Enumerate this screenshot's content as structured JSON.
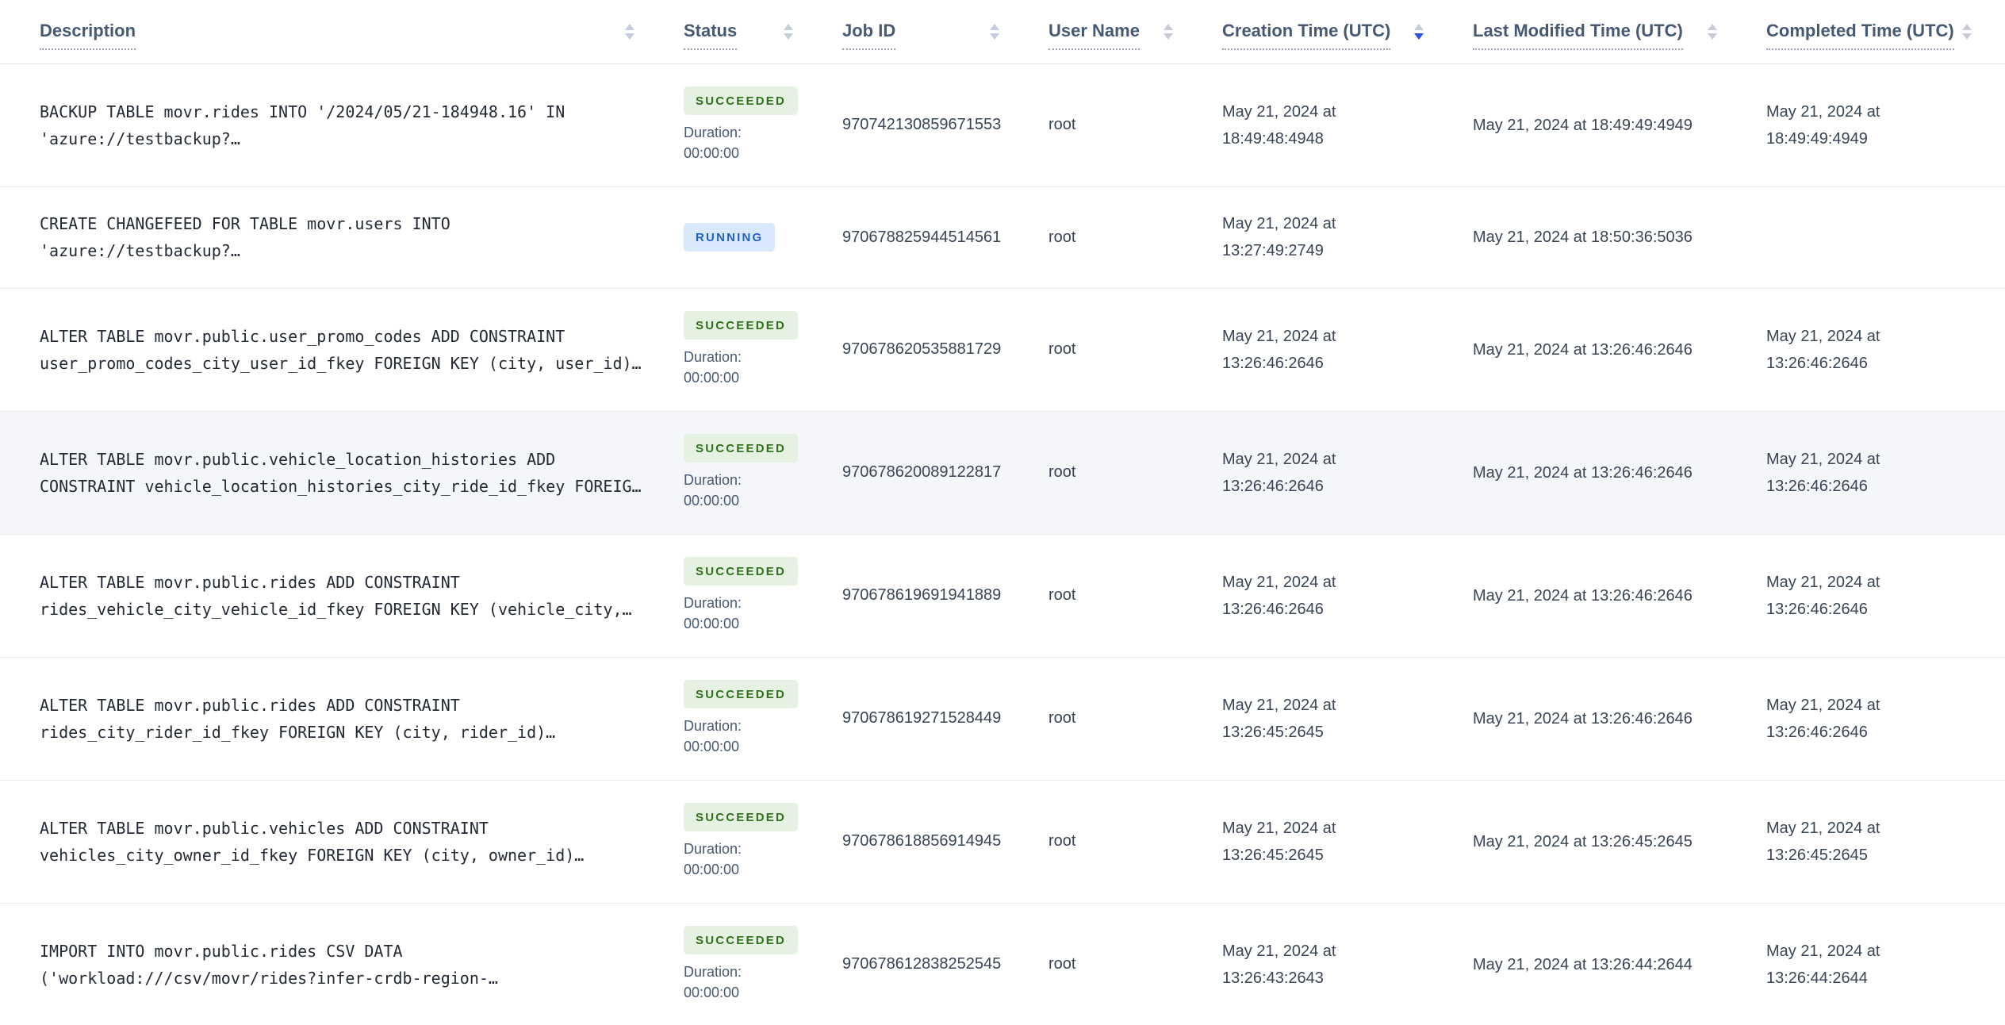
{
  "table": {
    "columns": [
      {
        "key": "description",
        "label": "Description",
        "sortable": true,
        "sort": null
      },
      {
        "key": "status",
        "label": "Status",
        "sortable": true,
        "sort": null
      },
      {
        "key": "job-id",
        "label": "Job ID",
        "sortable": true,
        "sort": null
      },
      {
        "key": "user-name",
        "label": "User Name",
        "sortable": true,
        "sort": null
      },
      {
        "key": "creation-time",
        "label": "Creation Time (UTC)",
        "sortable": true,
        "sort": "desc"
      },
      {
        "key": "last-modified-time",
        "label": "Last Modified Time (UTC)",
        "sortable": true,
        "sort": null
      },
      {
        "key": "completed-time",
        "label": "Completed Time (UTC)",
        "sortable": true,
        "sort": null
      }
    ],
    "rows": [
      {
        "description": "BACKUP TABLE movr.rides INTO '/2024/05/21-184948.16' IN 'azure://testbackup?…",
        "status": "SUCCEEDED",
        "duration_label": "Duration:",
        "duration": "00:00:00",
        "job_id": "970742130859671553",
        "user_name": "root",
        "creation_time": "May 21, 2024 at 18:49:48:4948",
        "last_modified_time": "May 21, 2024 at 18:49:49:4949",
        "completed_time": "May 21, 2024 at 18:49:49:4949",
        "highlighted": false
      },
      {
        "description": "CREATE CHANGEFEED FOR TABLE movr.users INTO 'azure://testbackup?…",
        "status": "RUNNING",
        "job_id": "970678825944514561",
        "user_name": "root",
        "creation_time": "May 21, 2024 at 13:27:49:2749",
        "last_modified_time": "May 21, 2024 at 18:50:36:5036",
        "completed_time": "",
        "highlighted": false
      },
      {
        "description": "ALTER TABLE movr.public.user_promo_codes ADD CONSTRAINT user_promo_codes_city_user_id_fkey FOREIGN KEY (city, user_id)…",
        "status": "SUCCEEDED",
        "duration_label": "Duration:",
        "duration": "00:00:00",
        "job_id": "970678620535881729",
        "user_name": "root",
        "creation_time": "May 21, 2024 at 13:26:46:2646",
        "last_modified_time": "May 21, 2024 at 13:26:46:2646",
        "completed_time": "May 21, 2024 at 13:26:46:2646",
        "highlighted": false
      },
      {
        "description": "ALTER TABLE movr.public.vehicle_location_histories ADD CONSTRAINT vehicle_location_histories_city_ride_id_fkey FOREIG…",
        "status": "SUCCEEDED",
        "duration_label": "Duration:",
        "duration": "00:00:00",
        "job_id": "970678620089122817",
        "user_name": "root",
        "creation_time": "May 21, 2024 at 13:26:46:2646",
        "last_modified_time": "May 21, 2024 at 13:26:46:2646",
        "completed_time": "May 21, 2024 at 13:26:46:2646",
        "highlighted": true
      },
      {
        "description": "ALTER TABLE movr.public.rides ADD CONSTRAINT rides_vehicle_city_vehicle_id_fkey FOREIGN KEY (vehicle_city,…",
        "status": "SUCCEEDED",
        "duration_label": "Duration:",
        "duration": "00:00:00",
        "job_id": "970678619691941889",
        "user_name": "root",
        "creation_time": "May 21, 2024 at 13:26:46:2646",
        "last_modified_time": "May 21, 2024 at 13:26:46:2646",
        "completed_time": "May 21, 2024 at 13:26:46:2646",
        "highlighted": false
      },
      {
        "description": "ALTER TABLE movr.public.rides ADD CONSTRAINT rides_city_rider_id_fkey FOREIGN KEY (city, rider_id)…",
        "status": "SUCCEEDED",
        "duration_label": "Duration:",
        "duration": "00:00:00",
        "job_id": "970678619271528449",
        "user_name": "root",
        "creation_time": "May 21, 2024 at 13:26:45:2645",
        "last_modified_time": "May 21, 2024 at 13:26:46:2646",
        "completed_time": "May 21, 2024 at 13:26:46:2646",
        "highlighted": false
      },
      {
        "description": "ALTER TABLE movr.public.vehicles ADD CONSTRAINT vehicles_city_owner_id_fkey FOREIGN KEY (city, owner_id)…",
        "status": "SUCCEEDED",
        "duration_label": "Duration:",
        "duration": "00:00:00",
        "job_id": "970678618856914945",
        "user_name": "root",
        "creation_time": "May 21, 2024 at 13:26:45:2645",
        "last_modified_time": "May 21, 2024 at 13:26:45:2645",
        "completed_time": "May 21, 2024 at 13:26:45:2645",
        "highlighted": false
      },
      {
        "description": "IMPORT INTO movr.public.rides CSV DATA ('workload:///csv/movr/rides?infer-crdb-region-…",
        "status": "SUCCEEDED",
        "duration_label": "Duration:",
        "duration": "00:00:00",
        "job_id": "970678612838252545",
        "user_name": "root",
        "creation_time": "May 21, 2024 at 13:26:43:2643",
        "last_modified_time": "May 21, 2024 at 13:26:44:2644",
        "completed_time": "May 21, 2024 at 13:26:44:2644",
        "highlighted": false
      }
    ]
  },
  "theme": {
    "accent_sort_active": "#2A52E8",
    "sort_icon_inactive": "#C6CCDD",
    "badge_succeeded_bg": "#E5F2E1",
    "badge_succeeded_text": "#30701C",
    "badge_running_bg": "#DAE8FB",
    "badge_running_text": "#2161C4",
    "row_highlight_bg": "#F4F6F9",
    "header_text": "#475872",
    "body_text": "#394455",
    "description_text": "#242A35",
    "border": "#E9EDF3"
  }
}
